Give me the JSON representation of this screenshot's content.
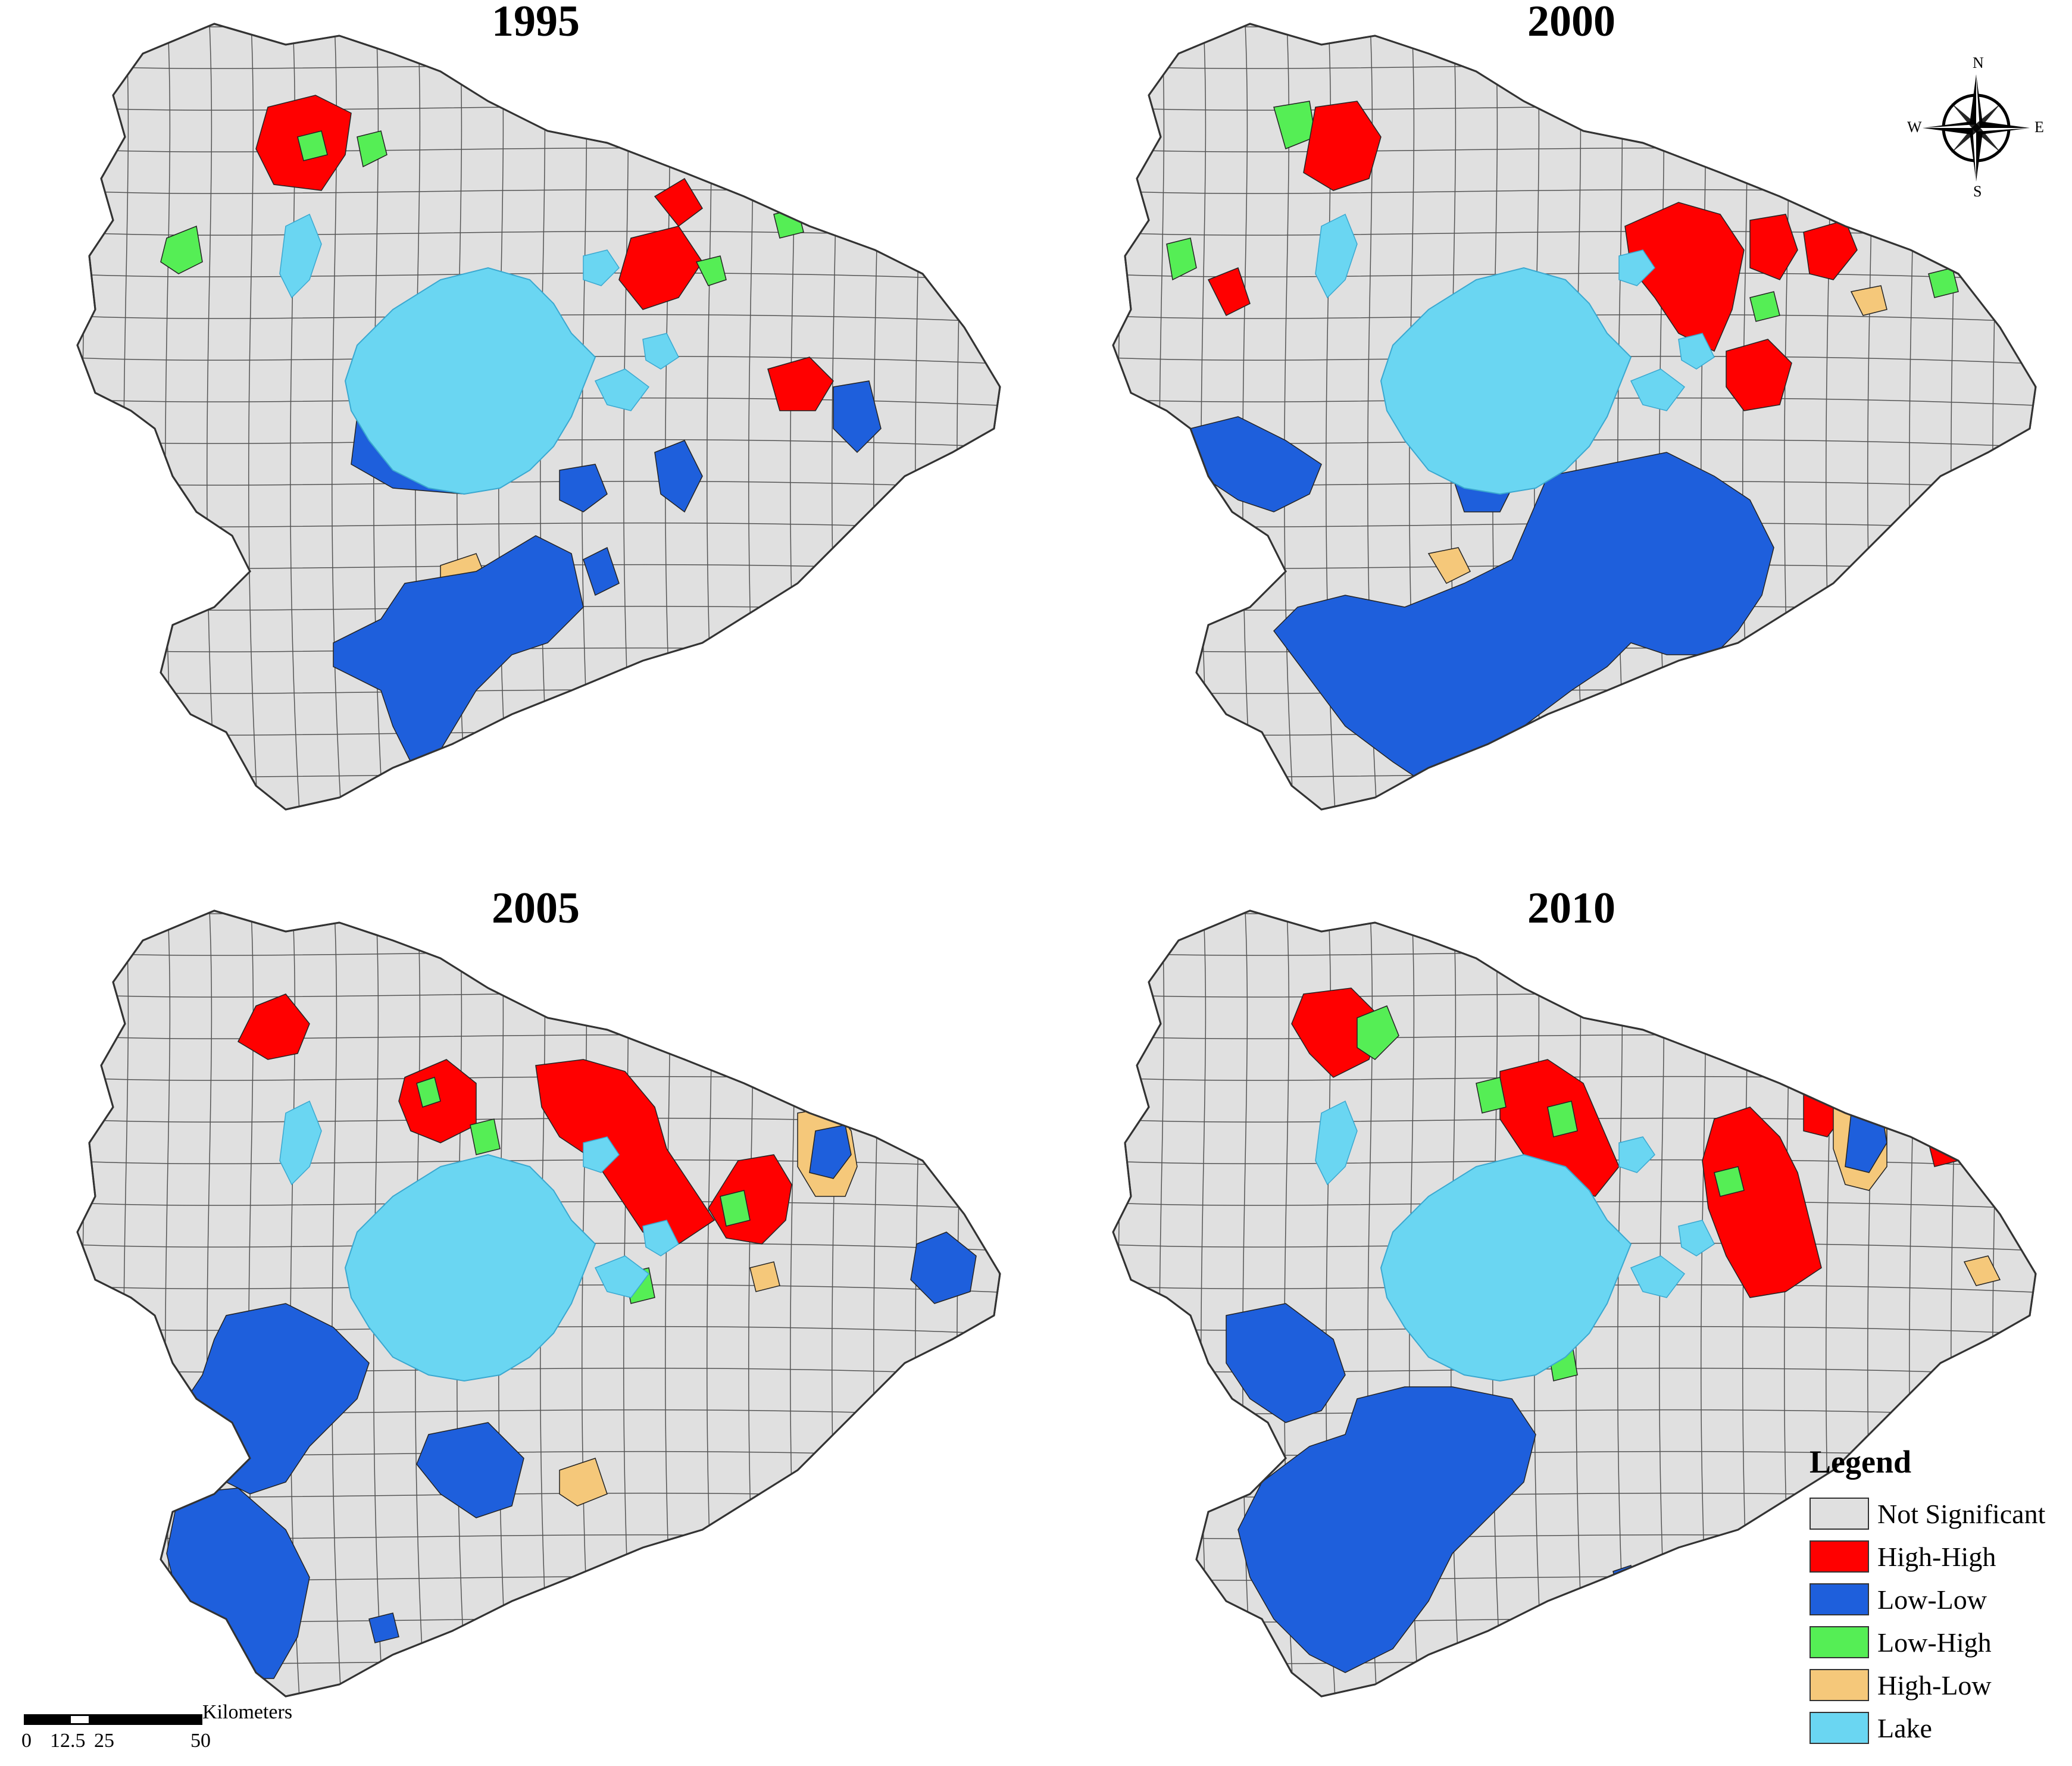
{
  "panels": [
    {
      "year": "1995"
    },
    {
      "year": "2000"
    },
    {
      "year": "2005"
    },
    {
      "year": "2010"
    }
  ],
  "compass": {
    "n": "N",
    "s": "S",
    "e": "E",
    "w": "W"
  },
  "legend": {
    "title": "Legend",
    "items": [
      {
        "label": "Not Significant",
        "color": "#e0e0e0"
      },
      {
        "label": "High-High",
        "color": "#ff0000"
      },
      {
        "label": "Low-Low",
        "color": "#1e5fdc"
      },
      {
        "label": "Low-High",
        "color": "#55ee55"
      },
      {
        "label": "High-Low",
        "color": "#f5c87a"
      },
      {
        "label": "Lake",
        "color": "#6ad6f2"
      }
    ]
  },
  "scale": {
    "unit": "Kilometers",
    "ticks": [
      "0",
      "12.5",
      "25",
      "50"
    ]
  },
  "colors": {
    "not_significant": "#e0e0e0",
    "high_high": "#ff0000",
    "low_low": "#1e5fdc",
    "low_high": "#55ee55",
    "high_low": "#f5c87a",
    "lake": "#6ad6f2",
    "boundary": "#333333"
  }
}
